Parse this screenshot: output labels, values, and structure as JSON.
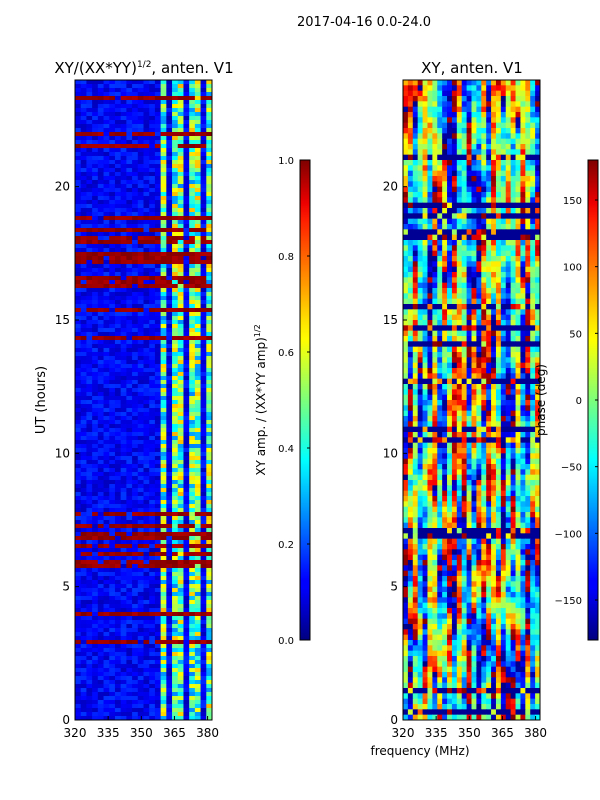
{
  "figure": {
    "suptitle": "2017-04-16 0.0-24.0",
    "shared_xlabel": "frequency (MHz)"
  },
  "chart_data": [
    {
      "type": "heatmap",
      "title_main": "XY/(XX*YY)",
      "title_sup": "1/2",
      "title_tail": ", anten. V1",
      "xlabel": "",
      "ylabel": "UT (hours)",
      "xlim": [
        320,
        382
      ],
      "ylim": [
        0,
        24
      ],
      "xticks": [
        320,
        335,
        350,
        365,
        380
      ],
      "yticks": [
        0,
        5,
        10,
        15,
        20
      ],
      "colorbar": {
        "label_main": "XY amp. / (XX*YY amp)",
        "label_sup": "1/2",
        "range": [
          0.0,
          1.0
        ],
        "ticks": [
          "0.0",
          "0.2",
          "0.4",
          "0.6",
          "0.8",
          "1.0"
        ],
        "tick_values": [
          0.0,
          0.2,
          0.4,
          0.6,
          0.8,
          1.0
        ],
        "colormap": "jet"
      },
      "bright_channel_band_MHz": [
        360,
        382
      ],
      "dense_flag_periods_UT": [
        [
          3.5,
          4.2
        ],
        [
          5.5,
          7.9
        ],
        [
          15.9,
          16.6
        ],
        [
          17.0,
          18.9
        ],
        [
          19.8,
          20.1
        ]
      ]
    },
    {
      "type": "heatmap",
      "title_main": "XY, anten. V1",
      "title_sup": "",
      "title_tail": "",
      "xlabel": "frequency (MHz)",
      "ylabel": "",
      "xlim": [
        320,
        382
      ],
      "ylim": [
        0,
        24
      ],
      "xticks": [
        320,
        335,
        350,
        365,
        380
      ],
      "yticks": [
        0,
        5,
        10,
        15,
        20
      ],
      "colorbar": {
        "label_main": "phase (deg)",
        "label_sup": "",
        "range": [
          -180,
          180
        ],
        "ticks": [
          "−150",
          "−100",
          "−50",
          "0",
          "50",
          "100",
          "150"
        ],
        "tick_values": [
          -150,
          -100,
          -50,
          0,
          50,
          100,
          150
        ],
        "colormap": "jet"
      }
    }
  ]
}
